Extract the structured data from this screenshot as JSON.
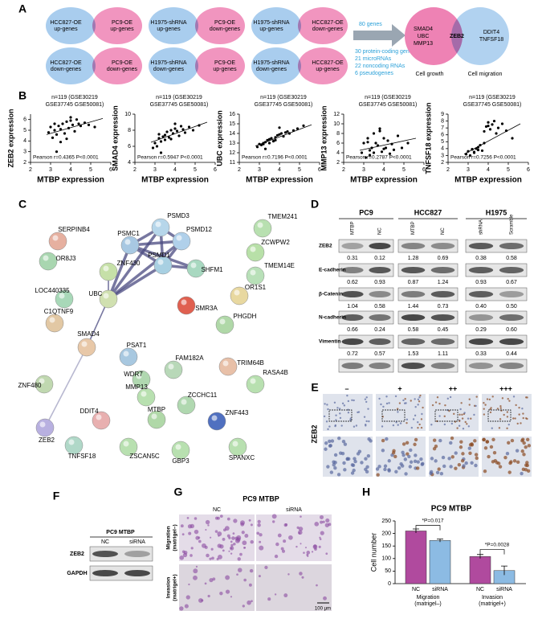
{
  "panel_labels": [
    "A",
    "B",
    "C",
    "D",
    "E",
    "F",
    "G",
    "H"
  ],
  "venn": {
    "pairs": [
      {
        "left": [
          "HCC827-OE",
          "up-genes"
        ],
        "right": [
          "PC9-OE",
          "up-genes"
        ]
      },
      {
        "left": [
          "H1975-shRNA",
          "up-genes"
        ],
        "right": [
          "PC9-OE",
          "down-genes"
        ]
      },
      {
        "left": [
          "H1975-shRNA",
          "up-genes"
        ],
        "right": [
          "HCC827-OE",
          "down-genes"
        ]
      },
      {
        "left": [
          "HCC827-OE",
          "down-genes"
        ],
        "right": [
          "PC9-OE",
          "down-genes"
        ]
      },
      {
        "left": [
          "H1975-shRNA",
          "down-genes"
        ],
        "right": [
          "PC9-OE",
          "up-genes"
        ]
      },
      {
        "left": [
          "H1975-shRNA",
          "down-genes"
        ],
        "right": [
          "HCC827-OE",
          "up-genes"
        ]
      }
    ],
    "total": "80 genes",
    "breakdown": [
      "30 protein-coding genes",
      "21 microRNAs",
      "22 noncoding RNAs",
      "6 pseudogenes"
    ],
    "result": {
      "left": [
        "SMAD4",
        "UBC",
        "MMP13"
      ],
      "center": "ZEB2",
      "right": [
        "DDIT4",
        "TNFSF18"
      ],
      "left_caption": "Cell growth",
      "right_caption": "Cell migration"
    }
  },
  "chart_data": [
    {
      "type": "scatter",
      "title": [
        "n=119 (GSE30219",
        "GSE37745 GSE50081)"
      ],
      "x_label": "MTBP expression",
      "y_label": "ZEB2 expression",
      "stat": "Pearson r=0.4365 P<0.0001",
      "xlim": [
        2,
        6
      ],
      "xticks": [
        2,
        3,
        4,
        5,
        6
      ],
      "ylim": [
        2,
        6.5
      ],
      "yticks": [
        2,
        3,
        4,
        5,
        6
      ],
      "color": "#000000",
      "x": [
        2.9,
        3.0,
        3.1,
        3.2,
        3.3,
        3.4,
        3.5,
        3.5,
        3.6,
        3.7,
        3.8,
        3.9,
        4.0,
        4.1,
        4.2,
        4.3,
        4.4,
        4.5,
        4.7,
        4.9,
        5.2,
        3.3,
        3.8,
        4.0,
        3.2
      ],
      "y": [
        4.8,
        5.3,
        4.3,
        5.0,
        4.6,
        5.4,
        3.9,
        5.1,
        5.6,
        4.7,
        5.8,
        5.2,
        5.9,
        5.5,
        4.9,
        6.0,
        5.6,
        5.4,
        5.7,
        5.5,
        5.3,
        3.0,
        4.2,
        6.2,
        5.6
      ],
      "trendline": {
        "x": [
          2.8,
          5.6
        ],
        "y": [
          4.6,
          6.1
        ]
      }
    },
    {
      "type": "scatter",
      "title": [
        "n=119 (GSE30219",
        "GSE37745 GSE50081)"
      ],
      "x_label": "MTBP expression",
      "y_label": "SMAD4 expression",
      "stat": "Pearson r=0.5947 P<0.0001",
      "xlim": [
        2,
        6
      ],
      "xticks": [
        2,
        3,
        4,
        5,
        6
      ],
      "ylim": [
        4,
        10
      ],
      "yticks": [
        4,
        6,
        8,
        10
      ],
      "color": "#000000",
      "x": [
        2.9,
        3.0,
        3.1,
        3.2,
        3.3,
        3.4,
        3.5,
        3.5,
        3.6,
        3.7,
        3.8,
        3.9,
        4.0,
        4.1,
        4.2,
        4.3,
        4.4,
        4.5,
        4.7,
        4.9,
        5.2,
        3.3,
        3.8,
        4.0,
        3.2
      ],
      "y": [
        5.8,
        6.4,
        6.0,
        7.0,
        6.6,
        7.2,
        6.8,
        7.4,
        7.8,
        7.1,
        8.0,
        7.6,
        8.2,
        7.9,
        7.3,
        8.5,
        8.1,
        7.7,
        8.4,
        8.0,
        8.6,
        5.2,
        6.9,
        8.8,
        7.5
      ],
      "trendline": {
        "x": [
          2.8,
          5.6
        ],
        "y": [
          6.5,
          9.0
        ]
      }
    },
    {
      "type": "scatter",
      "title": [
        "n=119 (GSE30219",
        "GSE37745 GSE50081)"
      ],
      "x_label": "MTBP expression",
      "y_label": "UBC expression",
      "stat": "Pearson r=0.7196 P<0.0001",
      "xlim": [
        2,
        6
      ],
      "xticks": [
        2,
        3,
        4,
        5,
        6
      ],
      "ylim": [
        11,
        16
      ],
      "yticks": [
        11,
        12,
        13,
        14,
        15,
        16
      ],
      "color": "#000000",
      "x": [
        2.9,
        3.0,
        3.1,
        3.2,
        3.3,
        3.4,
        3.5,
        3.5,
        3.6,
        3.7,
        3.8,
        3.9,
        4.0,
        4.1,
        4.2,
        4.3,
        4.4,
        4.5,
        4.7,
        4.9,
        5.2,
        3.3,
        3.8,
        4.0,
        3.2
      ],
      "y": [
        12.6,
        12.9,
        12.8,
        13.0,
        13.1,
        13.3,
        13.0,
        13.4,
        13.5,
        13.2,
        13.6,
        13.8,
        13.9,
        14.0,
        13.7,
        14.1,
        14.2,
        14.0,
        14.3,
        14.5,
        14.8,
        12.4,
        13.3,
        14.6,
        12.9
      ],
      "trendline": {
        "x": [
          2.8,
          5.6
        ],
        "y": [
          12.7,
          14.9
        ]
      }
    },
    {
      "type": "scatter",
      "title": [
        "n=119 (GSE30219",
        "GSE37745 GSE50081)"
      ],
      "x_label": "MTBP expression",
      "y_label": "MMP13 expression",
      "stat": "Pearson r=0.2787 P<0.0001",
      "xlim": [
        2,
        6
      ],
      "xticks": [
        2,
        3,
        4,
        5,
        6
      ],
      "ylim": [
        2,
        12
      ],
      "yticks": [
        2,
        4,
        6,
        8,
        10,
        12
      ],
      "color": "#000000",
      "x": [
        2.9,
        3.0,
        3.1,
        3.2,
        3.3,
        3.4,
        3.5,
        3.5,
        3.6,
        3.7,
        3.8,
        3.9,
        4.0,
        4.1,
        4.2,
        4.3,
        4.4,
        4.5,
        4.7,
        4.9,
        5.2,
        3.3,
        3.8,
        4.0,
        3.2
      ],
      "y": [
        4,
        6,
        3,
        7,
        4.5,
        5,
        8,
        4,
        6,
        5.5,
        9,
        4.2,
        7,
        5,
        6.5,
        3.8,
        5.8,
        4.6,
        7.5,
        5,
        6,
        3.5,
        8.5,
        4.8,
        6.2
      ],
      "trendline": {
        "x": [
          2.8,
          5.6
        ],
        "y": [
          4.5,
          7.0
        ]
      }
    },
    {
      "type": "scatter",
      "title": [
        "n=119 (GSE30219",
        "GSE37745 GSE50081)"
      ],
      "x_label": "MTBP expression",
      "y_label": "TNFSF18 expression",
      "stat": "Pearson r=0.7256 P<0.0001",
      "xlim": [
        2,
        6
      ],
      "xticks": [
        2,
        3,
        4,
        5,
        6
      ],
      "ylim": [
        2,
        9
      ],
      "yticks": [
        2,
        3,
        4,
        5,
        6,
        7,
        8,
        9
      ],
      "color": "#000000",
      "x": [
        2.9,
        3.0,
        3.1,
        3.2,
        3.3,
        3.4,
        3.5,
        3.5,
        3.6,
        3.7,
        3.8,
        3.9,
        4.0,
        4.1,
        4.2,
        4.3,
        4.4,
        4.5,
        4.7,
        4.9,
        5.2,
        3.3,
        3.8,
        4.0,
        3.2
      ],
      "y": [
        3.2,
        3.6,
        3.0,
        3.9,
        3.5,
        4.0,
        3.8,
        4.2,
        4.5,
        3.7,
        6.5,
        7.2,
        7.8,
        6.8,
        7.5,
        8.0,
        6.2,
        7.0,
        7.6,
        6.6,
        5.5,
        3.4,
        4.8,
        7.3,
        3.9
      ],
      "trendline": {
        "x": [
          2.8,
          5.6
        ],
        "y": [
          3.2,
          7.6
        ]
      }
    },
    {
      "type": "bar",
      "title": "PC9 MTBP",
      "y_label": "Cell number",
      "categories": [
        "NC",
        "siRNA",
        "NC",
        "siRNA"
      ],
      "values": [
        210,
        172,
        108,
        52
      ],
      "errors": [
        8,
        6,
        8,
        18
      ],
      "colors": [
        "#b04a9e",
        "#8cbbe3",
        "#b04a9e",
        "#8cbbe3"
      ],
      "groups": [
        [
          "Migration",
          "(matrigel–)"
        ],
        [
          "Invasion",
          "(matrigel+)"
        ]
      ],
      "annotations": [
        "*P=0.017",
        "*P=0.0028"
      ],
      "ylim": [
        0,
        250
      ],
      "yticks": [
        0,
        50,
        100,
        150,
        200,
        250
      ]
    }
  ],
  "network": {
    "nodes": [
      {
        "label": "SERPINB4",
        "color": "#e6b0a0"
      },
      {
        "label": "OR8J3",
        "color": "#a9d6b0"
      },
      {
        "label": "ZNF430",
        "color": "#c6e0a8"
      },
      {
        "label": "LOC440335",
        "color": "#a8d8b8"
      },
      {
        "label": "C1QTNF9",
        "color": "#e2c8a4"
      },
      {
        "label": "PSMD3",
        "color": "#b6d6ea"
      },
      {
        "label": "PSMC1",
        "color": "#a8c8e2"
      },
      {
        "label": "PSMD12",
        "color": "#b0d0ea"
      },
      {
        "label": "PSMD1",
        "color": "#a8d0e2"
      },
      {
        "label": "SHFM1",
        "color": "#a8d8c0"
      },
      {
        "label": "UBC",
        "color": "#d0e0b0"
      },
      {
        "label": "SMR3A",
        "color": "#e06050"
      },
      {
        "label": "TMEM241",
        "color": "#b8e0b0"
      },
      {
        "label": "ZCWPW2",
        "color": "#b8e0a8"
      },
      {
        "label": "TMEM14E",
        "color": "#b8e0b8"
      },
      {
        "label": "OR1S1",
        "color": "#e8d8a0"
      },
      {
        "label": "PHGDH",
        "color": "#b0d8a8"
      },
      {
        "label": "SMAD4",
        "color": "#e8c8a8"
      },
      {
        "label": "PSAT1",
        "color": "#a8c8e0"
      },
      {
        "label": "ZNF480",
        "color": "#c0d8b0"
      },
      {
        "label": "WDR7",
        "color": "#b0d8b0"
      },
      {
        "label": "FAM182A",
        "color": "#b8d8b8"
      },
      {
        "label": "TRIM64B",
        "color": "#e8c0a8"
      },
      {
        "label": "RASA4B",
        "color": "#b8e0b0"
      },
      {
        "label": "MMP13",
        "color": "#b8e0b0"
      },
      {
        "label": "ZCCHC11",
        "color": "#b0d8b0"
      },
      {
        "label": "ZEB2",
        "color": "#b8b0e0"
      },
      {
        "label": "DDIT4",
        "color": "#e8b0b0"
      },
      {
        "label": "MTBP",
        "color": "#b0d8a8"
      },
      {
        "label": "ZNF443",
        "color": "#5070c0"
      },
      {
        "label": "TNFSF18",
        "color": "#b0d8c8"
      },
      {
        "label": "ZSCAN5C",
        "color": "#b8e0b0"
      },
      {
        "label": "GBP3",
        "color": "#b8e0b0"
      },
      {
        "label": "SPANXC",
        "color": "#b8e0b0"
      }
    ],
    "edges": [
      [
        6,
        5
      ],
      [
        6,
        7
      ],
      [
        6,
        8
      ],
      [
        5,
        7
      ],
      [
        5,
        8
      ],
      [
        7,
        8
      ],
      [
        8,
        9
      ],
      [
        6,
        9
      ],
      [
        6,
        10
      ],
      [
        8,
        10
      ],
      [
        5,
        10
      ],
      [
        7,
        10
      ],
      [
        10,
        2
      ],
      [
        10,
        17
      ],
      [
        17,
        26
      ]
    ]
  },
  "western": {
    "groups": [
      {
        "name": "PC9",
        "lanes": [
          "MTBP",
          "NC"
        ]
      },
      {
        "name": "HCC827",
        "lanes": [
          "MTBP",
          "NC"
        ]
      },
      {
        "name": "H1975",
        "lanes": [
          "shRNA",
          "Scramble"
        ]
      }
    ],
    "rows": [
      {
        "name": "ZEB2",
        "values": [
          "0.31",
          "0.12",
          "1.28",
          "0.69",
          "0.38",
          "0.58"
        ]
      },
      {
        "name": "E-cadherin",
        "values": [
          "0.62",
          "0.93",
          "0.87",
          "1.24",
          "0.93",
          "0.67"
        ]
      },
      {
        "name": "β-Catenin",
        "values": [
          "1.04",
          "0.58",
          "1.44",
          "0.73",
          "0.40",
          "0.50"
        ]
      },
      {
        "name": "N-cadherin",
        "values": [
          "0.66",
          "0.24",
          "0.58",
          "0.45",
          "0.29",
          "0.60"
        ]
      },
      {
        "name": "Vimentin",
        "values": [
          "0.72",
          "0.57",
          "1.53",
          "1.11",
          "0.33",
          "0.44"
        ]
      }
    ]
  },
  "ihc": {
    "grades": [
      "–",
      "+",
      "++",
      "+++"
    ],
    "marker": "ZEB2"
  },
  "blot_f": {
    "title": "PC9 MTBP",
    "lanes": [
      "NC",
      "siRNA"
    ],
    "rows": [
      "ZEB2",
      "GAPDH"
    ]
  },
  "transwell": {
    "title": "PC9 MTBP",
    "columns": [
      "NC",
      "siRNA"
    ],
    "rows": [
      [
        "Migration",
        "(matrigel–)"
      ],
      [
        "Invasion",
        "(matrigel+)"
      ]
    ],
    "scale": "100 μm"
  }
}
